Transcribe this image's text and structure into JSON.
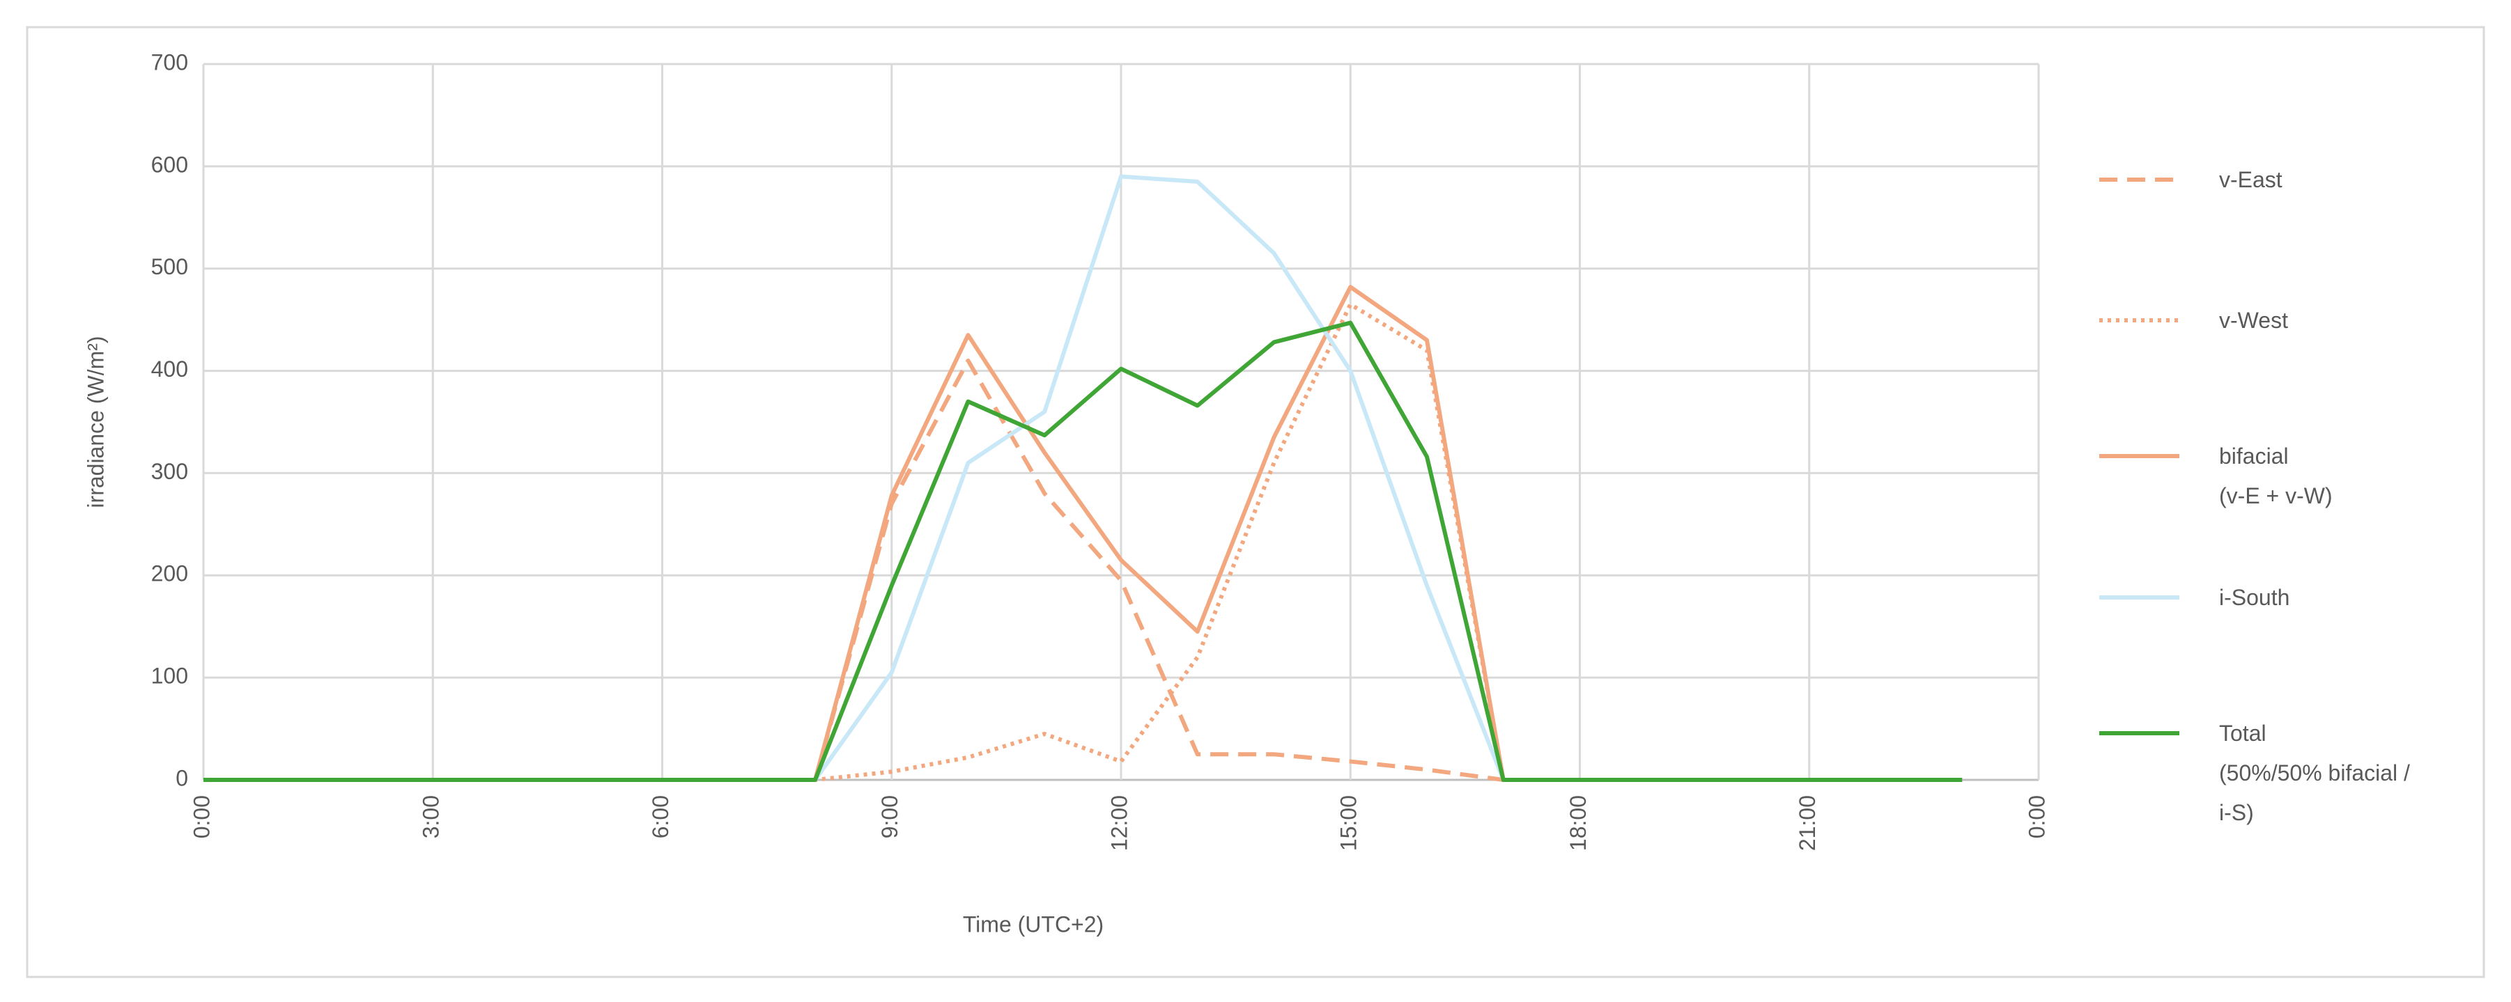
{
  "chart_data": {
    "type": "line",
    "x_label": "Time (UTC+2)",
    "y_label": "irradiance (W/m²)",
    "x": [
      0,
      1,
      2,
      3,
      4,
      5,
      6,
      7,
      8,
      9,
      10,
      11,
      12,
      13,
      14,
      15,
      16,
      17,
      18,
      19,
      20,
      21,
      22,
      23
    ],
    "xlim": [
      0,
      24
    ],
    "xticks": [
      {
        "value": 0,
        "label": "0:00"
      },
      {
        "value": 3,
        "label": "3:00"
      },
      {
        "value": 6,
        "label": "6:00"
      },
      {
        "value": 9,
        "label": "9:00"
      },
      {
        "value": 12,
        "label": "12:00"
      },
      {
        "value": 15,
        "label": "15:00"
      },
      {
        "value": 18,
        "label": "18:00"
      },
      {
        "value": 21,
        "label": "21:00"
      },
      {
        "value": 24,
        "label": "0:00"
      }
    ],
    "ylim": [
      0,
      700
    ],
    "yticks": [
      0,
      100,
      200,
      300,
      400,
      500,
      600,
      700
    ],
    "grid": true,
    "legend": "right",
    "series": [
      {
        "name": "v-East",
        "color": "#f2a77f",
        "dash": "dashed",
        "values": [
          0,
          0,
          0,
          0,
          0,
          0,
          0,
          0,
          0,
          270,
          410,
          280,
          195,
          25,
          25,
          18,
          10,
          0,
          0,
          0,
          0,
          0,
          0,
          0
        ]
      },
      {
        "name": "v-West",
        "color": "#f2a77f",
        "dash": "dotted",
        "values": [
          0,
          0,
          0,
          0,
          0,
          0,
          0,
          0,
          0,
          8,
          22,
          45,
          18,
          120,
          310,
          465,
          420,
          0,
          0,
          0,
          0,
          0,
          0,
          0
        ]
      },
      {
        "name": "bifacial\n(v-E + v-W)",
        "color": "#f2a77f",
        "dash": "solid",
        "values": [
          0,
          0,
          0,
          0,
          0,
          0,
          0,
          0,
          0,
          278,
          435,
          320,
          215,
          145,
          335,
          482,
          430,
          0,
          0,
          0,
          0,
          0,
          0,
          0
        ]
      },
      {
        "name": "i-South",
        "color": "#c8e8f7",
        "dash": "solid",
        "values": [
          0,
          0,
          0,
          0,
          0,
          0,
          0,
          0,
          0,
          105,
          310,
          360,
          590,
          585,
          515,
          400,
          190,
          0,
          0,
          0,
          0,
          0,
          0,
          0
        ]
      },
      {
        "name": "Total\n(50%/50% bifacial /\ni-S)",
        "color": "#3fa535",
        "dash": "solid",
        "values": [
          0,
          0,
          0,
          0,
          0,
          0,
          0,
          0,
          0,
          190,
          370,
          337,
          402,
          366,
          428,
          447,
          316,
          0,
          0,
          0,
          0,
          0,
          0,
          0
        ]
      }
    ]
  }
}
